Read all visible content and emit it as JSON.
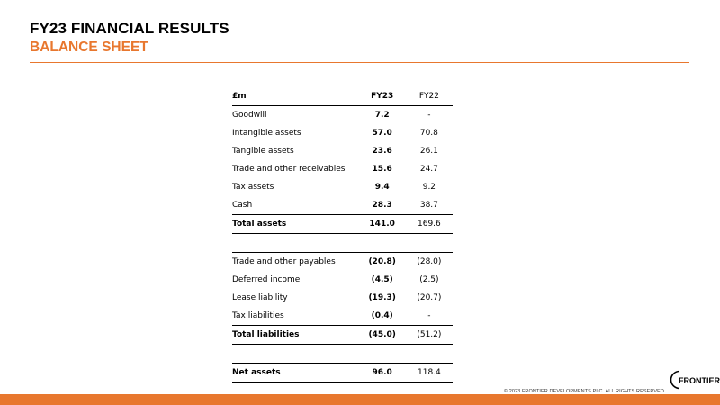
{
  "header": {
    "title": "FY23 FINANCIAL RESULTS",
    "subtitle": "BALANCE SHEET"
  },
  "table": {
    "columns": [
      "£m",
      "FY23",
      "FY22"
    ],
    "rows": [
      {
        "label": "Goodwill",
        "fy23": "7.2",
        "fy22": "-"
      },
      {
        "label": "Intangible assets",
        "fy23": "57.0",
        "fy22": "70.8"
      },
      {
        "label": "Tangible assets",
        "fy23": "23.6",
        "fy22": "26.1"
      },
      {
        "label": "Trade and other receivables",
        "fy23": "15.6",
        "fy22": "24.7"
      },
      {
        "label": "Tax assets",
        "fy23": "9.4",
        "fy22": "9.2"
      },
      {
        "label": "Cash",
        "fy23": "28.3",
        "fy22": "38.7"
      },
      {
        "label": "Total assets",
        "fy23": "141.0",
        "fy22": "169.6"
      },
      {
        "label": "Trade and other payables",
        "fy23": "(20.8)",
        "fy22": "(28.0)"
      },
      {
        "label": "Deferred income",
        "fy23": "(4.5)",
        "fy22": "(2.5)"
      },
      {
        "label": "Lease liability",
        "fy23": "(19.3)",
        "fy22": "(20.7)"
      },
      {
        "label": "Tax liabilities",
        "fy23": "(0.4)",
        "fy22": "-"
      },
      {
        "label": "Total liabilities",
        "fy23": "(45.0)",
        "fy22": "(51.2)"
      },
      {
        "label": "Net assets",
        "fy23": "96.0",
        "fy22": "118.4"
      }
    ]
  },
  "footer": {
    "copyright": "© 2023 FRONTIER DEVELOPMENTS PLC. ALL RIGHTS RESERVED",
    "logo_text": "FRONTIER"
  },
  "colors": {
    "accent": "#E8772E",
    "text": "#000000"
  }
}
